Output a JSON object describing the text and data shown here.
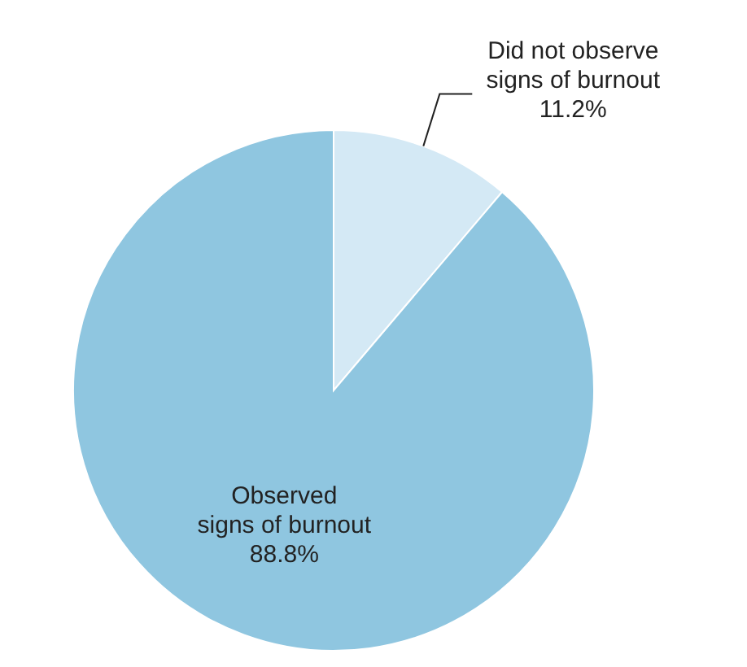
{
  "chart_data": {
    "type": "pie",
    "categories": [
      "Did not observe\nsigns of burnout",
      "Observed\nsigns of burnout"
    ],
    "values": [
      11.2,
      88.8
    ],
    "colors": [
      "#d4e9f5",
      "#8fc6e0"
    ],
    "value_labels": [
      "11.2%",
      "88.8%"
    ],
    "legend": false
  }
}
